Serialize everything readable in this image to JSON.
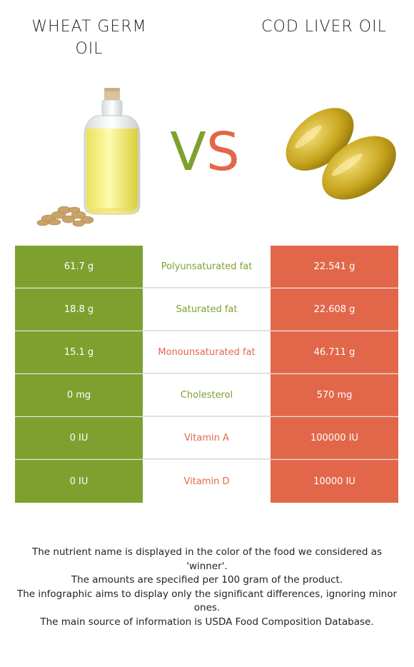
{
  "header": {
    "left_title": "WHEAT GERM OIL",
    "right_title": "COD LIVER OIL",
    "vs_v": "V",
    "vs_s": "S"
  },
  "colors": {
    "left": "#7ea02f",
    "right": "#e2674a"
  },
  "rows": [
    {
      "left": "61.7 g",
      "nutrient": "Polyunsaturated fat",
      "right": "22.541 g",
      "winner": "left"
    },
    {
      "left": "18.8 g",
      "nutrient": "Saturated fat",
      "right": "22.608 g",
      "winner": "left"
    },
    {
      "left": "15.1 g",
      "nutrient": "Monounsaturated fat",
      "right": "46.711 g",
      "winner": "right"
    },
    {
      "left": "0 mg",
      "nutrient": "Cholesterol",
      "right": "570 mg",
      "winner": "left"
    },
    {
      "left": "0 IU",
      "nutrient": "Vitamin A",
      "right": "100000 IU",
      "winner": "right"
    },
    {
      "left": "0 IU",
      "nutrient": "Vitamin D",
      "right": "10000 IU",
      "winner": "right"
    }
  ],
  "footer": {
    "line1": "The nutrient name is displayed in the color of the food we considered as 'winner'.",
    "line2": "The amounts are specified per 100 gram of the product.",
    "line3": "The infographic aims to display only the significant differences, ignoring minor ones.",
    "line4": "The main source of information is USDA Food Composition Database."
  },
  "images": {
    "left": "wheat-germ-oil-bottle-image",
    "right": "cod-liver-oil-capsules-image"
  }
}
